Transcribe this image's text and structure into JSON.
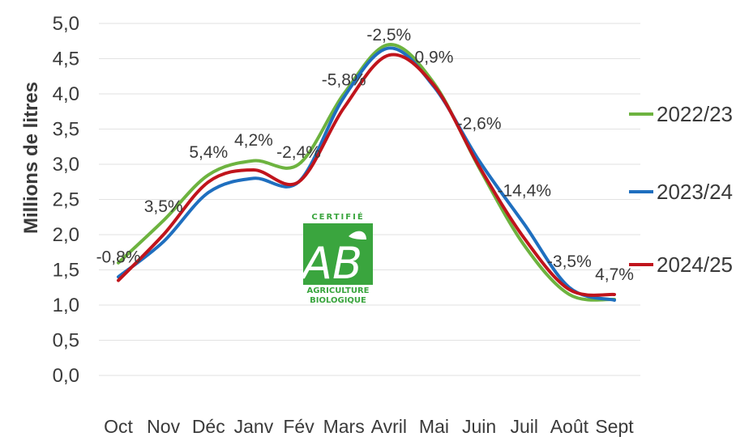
{
  "chart_data": {
    "type": "line",
    "title": "",
    "xlabel": "",
    "ylabel": "Millions de litres",
    "ylim": [
      0,
      5
    ],
    "yticks": [
      "0,0",
      "0,5",
      "1,0",
      "1,5",
      "2,0",
      "2,5",
      "3,0",
      "3,5",
      "4,0",
      "4,5",
      "5,0"
    ],
    "categories": [
      "Oct",
      "Nov",
      "Déc",
      "Janv",
      "Fév",
      "Mars",
      "Avril",
      "Mai",
      "Juin",
      "Juil",
      "Août",
      "Sept"
    ],
    "series": [
      {
        "name": "2022/23",
        "color": "#6db33f",
        "values": [
          1.6,
          2.2,
          2.85,
          3.05,
          3.0,
          4.0,
          4.7,
          4.15,
          2.95,
          1.85,
          1.15,
          1.08
        ]
      },
      {
        "name": "2023/24",
        "color": "#1f6fbf",
        "values": [
          1.4,
          1.9,
          2.6,
          2.8,
          2.75,
          3.95,
          4.65,
          4.1,
          3.05,
          2.15,
          1.25,
          1.07
        ]
      },
      {
        "name": "2024/25",
        "color": "#c0141c",
        "values": [
          1.35,
          2.0,
          2.75,
          2.92,
          2.75,
          3.8,
          4.55,
          4.12,
          2.97,
          1.95,
          1.22,
          1.15
        ]
      }
    ],
    "annotations": [
      "-0,8%",
      "3,5%",
      "5,4%",
      "4,2%",
      "-2,4%",
      "-5,8%",
      "-2,5%",
      "0,9%",
      "-2,6%",
      "-14,4%",
      "-3,5%",
      "4,7%"
    ],
    "grid": true,
    "legend": "right"
  },
  "logo": {
    "top_text": "CERTIFIÉ",
    "mark": "AB",
    "line1": "AGRICULTURE",
    "line2": "BIOLOGIQUE",
    "color": "#3aa53e"
  }
}
